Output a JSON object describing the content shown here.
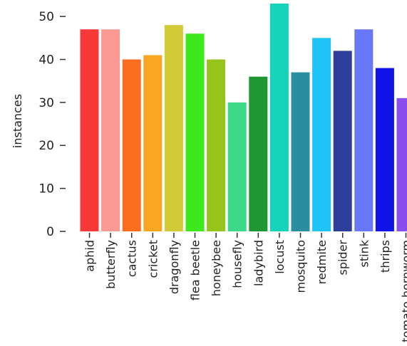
{
  "chart_data": {
    "type": "bar",
    "ylabel": "instances",
    "xlabel": "",
    "ylim": [
      0,
      53
    ],
    "yticks": [
      0,
      10,
      20,
      30,
      40,
      50
    ],
    "grid": false,
    "categories": [
      "aphid",
      "butterfly",
      "cactus",
      "cricket",
      "dragonfly",
      "flea beetle",
      "honeybee",
      "housefly",
      "ladybird",
      "locust",
      "mosquito",
      "redmite",
      "spider",
      "stink",
      "thrips",
      "tomato hornworm"
    ],
    "values": [
      47,
      47,
      40,
      41,
      48,
      46,
      40,
      30,
      36,
      53,
      37,
      45,
      42,
      47,
      38,
      31
    ],
    "colors": [
      "#f93838",
      "#fa9a93",
      "#fa6c1e",
      "#f9a722",
      "#d3cb35",
      "#3de81c",
      "#97c31d",
      "#3ed988",
      "#1e9732",
      "#16d4bc",
      "#2b8ea0",
      "#1fc3f8",
      "#2d3f9a",
      "#6878f8",
      "#0f13e6",
      "#8a4dee"
    ]
  }
}
